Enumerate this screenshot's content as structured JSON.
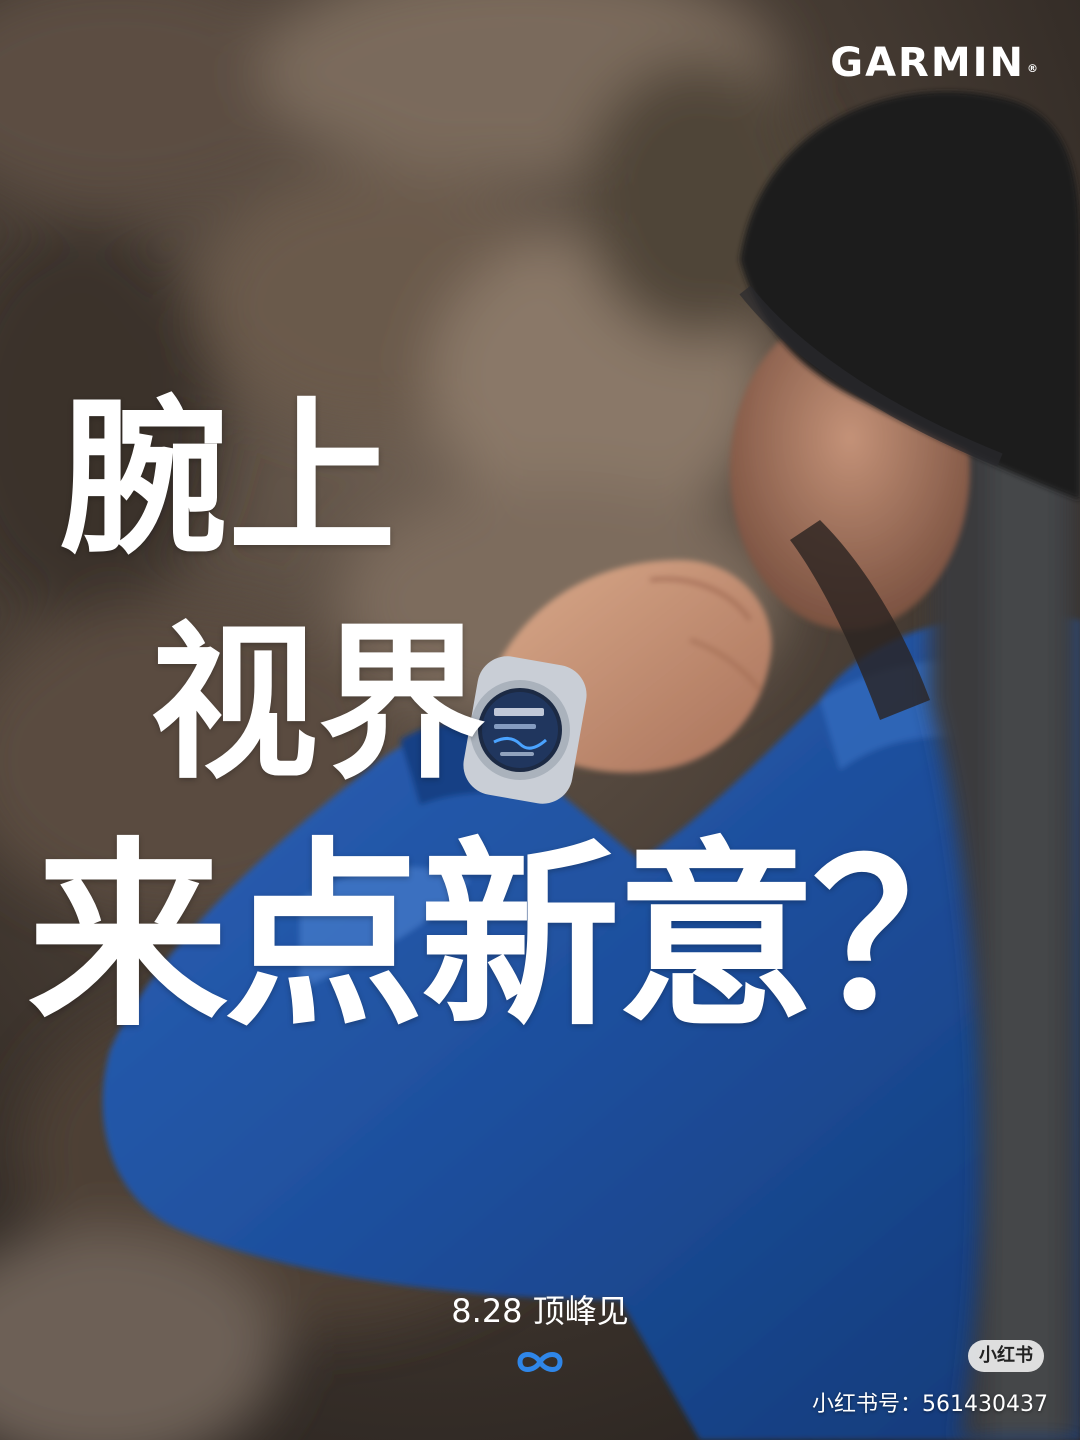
{
  "brand": {
    "logo_text": "GARMIN",
    "registered_mark": "®"
  },
  "headline": {
    "line1": "腕上",
    "line2": "视界",
    "line3": "来点新意？"
  },
  "event": {
    "date_text": "8.28 顶峰见"
  },
  "icons": {
    "infinity": "infinity-icon"
  },
  "watermark": {
    "badge": "小红书",
    "account": "小红书号：561430437"
  },
  "colors": {
    "jacket_blue": "#1f4f9e",
    "beanie_black": "#1a1a1c",
    "icon_blue": "#2f86e8",
    "text_white": "#ffffff"
  }
}
